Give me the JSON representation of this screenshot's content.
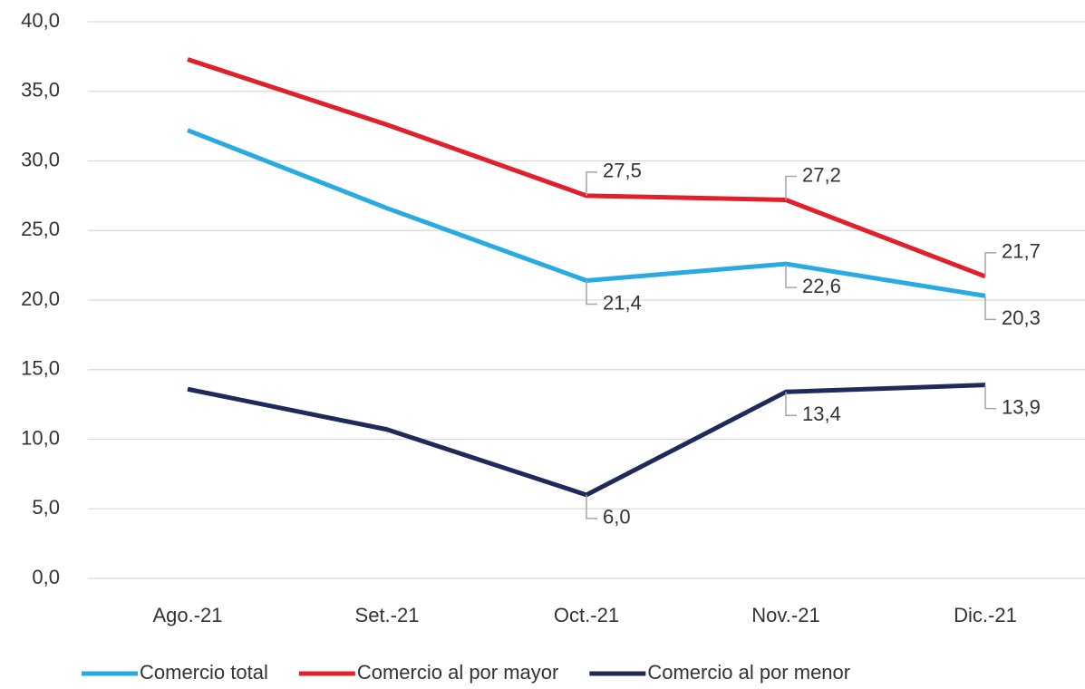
{
  "chart_data": {
    "type": "line",
    "categories": [
      "Ago.-21",
      "Set.-21",
      "Oct.-21",
      "Nov.-21",
      "Dic.-21"
    ],
    "series": [
      {
        "name": "Comercio total",
        "color": "#29abe2",
        "values": [
          32.2,
          26.6,
          21.4,
          22.6,
          20.3
        ],
        "value_labels": [
          null,
          null,
          "21,4",
          "22,6",
          "20,3"
        ]
      },
      {
        "name": "Comercio al por mayor",
        "color": "#e0202a",
        "values": [
          37.3,
          32.6,
          27.5,
          27.2,
          21.7
        ],
        "value_labels": [
          null,
          null,
          "27,5",
          "27,2",
          "21,7"
        ]
      },
      {
        "name": "Comercio al por menor",
        "color": "#1f2a5a",
        "values": [
          13.6,
          10.7,
          6.0,
          13.4,
          13.9
        ],
        "value_labels": [
          null,
          null,
          "6,0",
          "13,4",
          "13,9"
        ]
      }
    ],
    "ylim": [
      0,
      40
    ],
    "yticks": [
      {
        "value": 0,
        "label": "0,0"
      },
      {
        "value": 5,
        "label": "5,0"
      },
      {
        "value": 10,
        "label": "10,0"
      },
      {
        "value": 15,
        "label": "15,0"
      },
      {
        "value": 20,
        "label": "20,0"
      },
      {
        "value": 25,
        "label": "25,0"
      },
      {
        "value": 30,
        "label": "30,0"
      },
      {
        "value": 35,
        "label": "35,0"
      },
      {
        "value": 40,
        "label": "40,0"
      }
    ],
    "grid": true,
    "legend": "bottom"
  }
}
